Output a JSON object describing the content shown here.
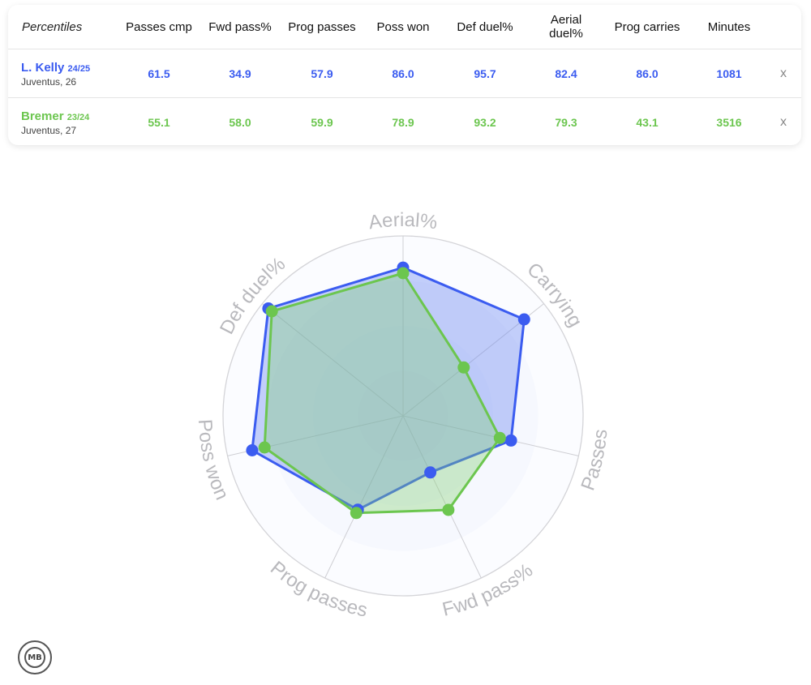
{
  "table": {
    "header_label": "Percentiles",
    "columns": [
      "Passes cmp",
      "Fwd pass%",
      "Prog passes",
      "Poss won",
      "Def duel%",
      "Aerial duel%",
      "Prog carries",
      "Minutes"
    ],
    "remove_label": "x",
    "players": [
      {
        "name": "L. Kelly",
        "season": "24/25",
        "club_age": "Juventus, 26",
        "color": "#3b5cf0",
        "values": [
          "61.5",
          "34.9",
          "57.9",
          "86.0",
          "95.7",
          "82.4",
          "86.0",
          "1081"
        ]
      },
      {
        "name": "Bremer",
        "season": "23/24",
        "club_age": "Juventus, 27",
        "color": "#6cc64f",
        "values": [
          "55.1",
          "58.0",
          "59.9",
          "78.9",
          "93.2",
          "79.3",
          "43.1",
          "3516"
        ]
      }
    ]
  },
  "chart_data": {
    "type": "radar",
    "axes": [
      "Aerial%",
      "Carrying",
      "Passes",
      "Fwd pass%",
      "Prog passes",
      "Poss won",
      "Def duel%"
    ],
    "range": [
      0,
      100
    ],
    "rings": 4,
    "series": [
      {
        "name": "L. Kelly",
        "color": "#3b5cf0",
        "values": [
          82.4,
          86.0,
          61.5,
          34.9,
          57.9,
          86.0,
          95.7
        ]
      },
      {
        "name": "Bremer",
        "color": "#6cc64f",
        "values": [
          79.3,
          43.1,
          55.1,
          58.0,
          59.9,
          78.9,
          93.2
        ]
      }
    ]
  },
  "logo": {
    "text": "MB"
  }
}
